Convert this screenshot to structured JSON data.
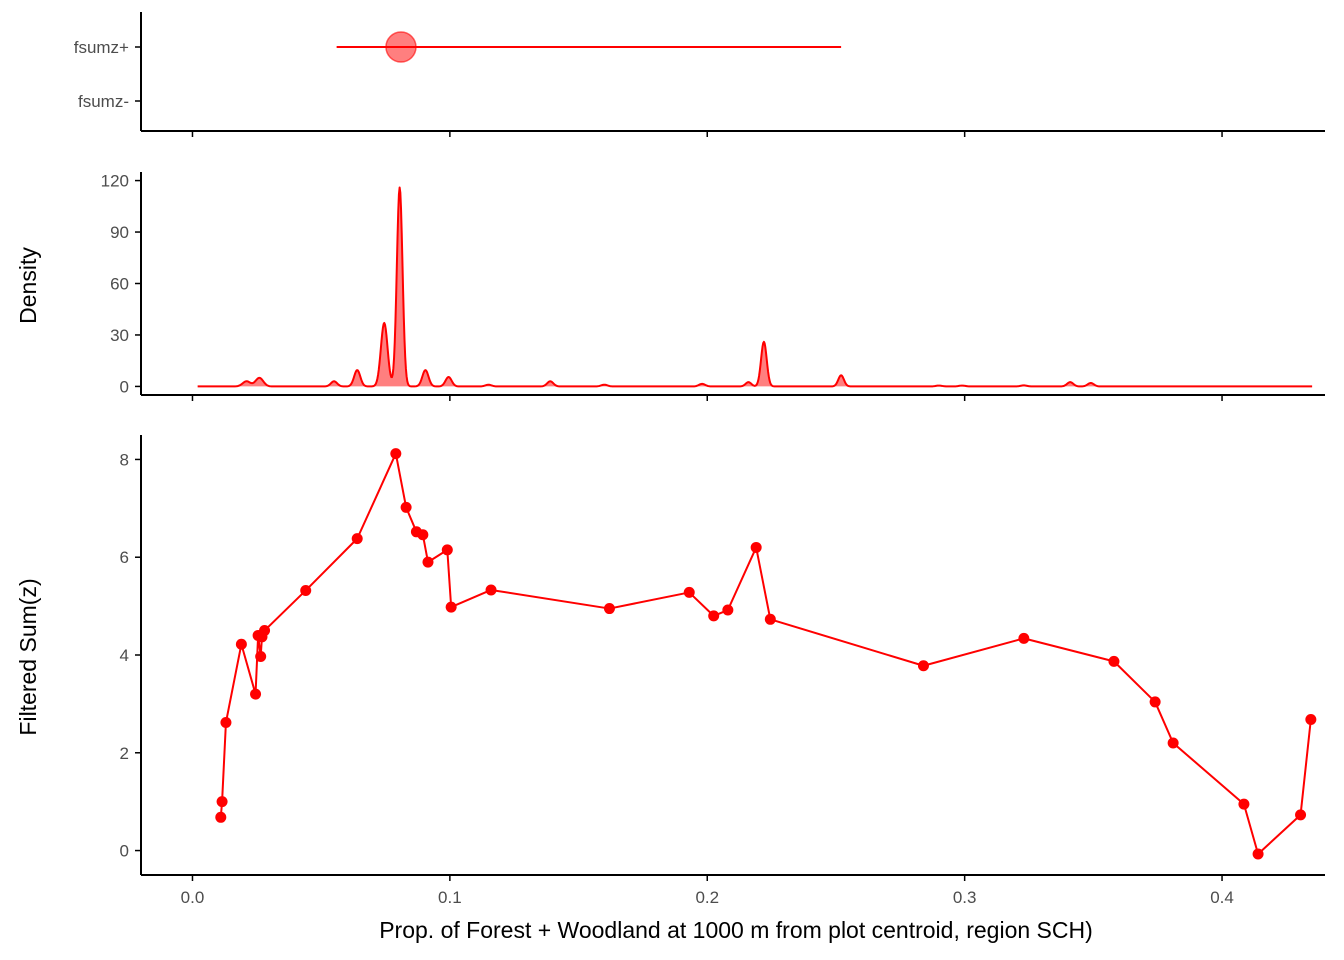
{
  "colors": {
    "series": "#ff0000",
    "axis": "#000000",
    "tick_text": "#4d4d4d",
    "background": "#ffffff"
  },
  "x_axis": {
    "label": "Prop. of Forest + Woodland at 1000 m from plot centroid, region SCH)",
    "ticks": [
      0.0,
      0.1,
      0.2,
      0.3,
      0.4
    ],
    "tick_labels": [
      "0.0",
      "0.1",
      "0.2",
      "0.3",
      "0.4"
    ],
    "range": [
      -0.02,
      0.44
    ]
  },
  "chart_data": [
    {
      "type": "scatter",
      "panel": "top",
      "categories": [
        "fsumz+",
        "fsumz-"
      ],
      "points": [
        {
          "category": "fsumz+",
          "x": 0.081,
          "xmin": 0.056,
          "xmax": 0.252
        }
      ],
      "xlabel": "",
      "ylabel": "",
      "grid": false
    },
    {
      "type": "area",
      "panel": "middle",
      "ylabel": "Density",
      "yticks": [
        0,
        30,
        60,
        90,
        120
      ],
      "ylim": [
        -5,
        125
      ],
      "x_range": [
        0.002,
        0.435
      ],
      "peaks": [
        {
          "x": 0.021,
          "h": 3,
          "w": 0.0015
        },
        {
          "x": 0.026,
          "h": 5,
          "w": 0.0015
        },
        {
          "x": 0.055,
          "h": 3,
          "w": 0.0012
        },
        {
          "x": 0.064,
          "h": 9.5,
          "w": 0.0012
        },
        {
          "x": 0.0745,
          "h": 37,
          "w": 0.0013
        },
        {
          "x": 0.0805,
          "h": 116,
          "w": 0.0011
        },
        {
          "x": 0.0905,
          "h": 9.5,
          "w": 0.0012
        },
        {
          "x": 0.0995,
          "h": 5.5,
          "w": 0.0012
        },
        {
          "x": 0.115,
          "h": 1,
          "w": 0.0012
        },
        {
          "x": 0.139,
          "h": 3,
          "w": 0.0012
        },
        {
          "x": 0.16,
          "h": 1,
          "w": 0.0012
        },
        {
          "x": 0.198,
          "h": 1.5,
          "w": 0.0012
        },
        {
          "x": 0.216,
          "h": 2.5,
          "w": 0.0011
        },
        {
          "x": 0.222,
          "h": 26,
          "w": 0.0011
        },
        {
          "x": 0.252,
          "h": 6.5,
          "w": 0.0011
        },
        {
          "x": 0.29,
          "h": 0.5,
          "w": 0.0012
        },
        {
          "x": 0.299,
          "h": 0.5,
          "w": 0.0012
        },
        {
          "x": 0.323,
          "h": 0.6,
          "w": 0.0012
        },
        {
          "x": 0.341,
          "h": 2.5,
          "w": 0.0012
        },
        {
          "x": 0.349,
          "h": 2,
          "w": 0.0012
        }
      ]
    },
    {
      "type": "line",
      "panel": "bottom",
      "ylabel": "Filtered Sum(z)",
      "yticks": [
        0,
        2,
        4,
        6,
        8
      ],
      "ylim": [
        -0.5,
        8.5
      ],
      "x": [
        0.011,
        0.0115,
        0.013,
        0.019,
        0.0245,
        0.0255,
        0.0265,
        0.027,
        0.028,
        0.044,
        0.064,
        0.079,
        0.083,
        0.087,
        0.0895,
        0.0915,
        0.099,
        0.1005,
        0.116,
        0.162,
        0.193,
        0.2025,
        0.208,
        0.219,
        0.2245,
        0.284,
        0.323,
        0.358,
        0.374,
        0.381,
        0.4085,
        0.414,
        0.4305,
        0.4345
      ],
      "y": [
        0.68,
        1.0,
        2.62,
        4.22,
        3.2,
        4.4,
        3.97,
        4.37,
        4.5,
        5.32,
        6.38,
        8.12,
        7.02,
        6.52,
        6.46,
        5.9,
        6.15,
        4.98,
        5.33,
        4.95,
        5.28,
        4.8,
        4.92,
        6.2,
        4.73,
        3.78,
        4.34,
        3.87,
        3.04,
        2.2,
        0.95,
        -0.07,
        0.73,
        2.68
      ]
    }
  ]
}
